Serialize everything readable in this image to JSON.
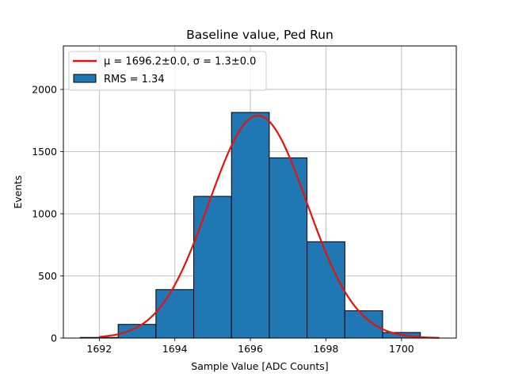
{
  "chart_data": {
    "type": "bar",
    "title": "Baseline value, Ped Run",
    "xlabel": "Sample Value [ADC Counts]",
    "ylabel": "Events",
    "xlim": [
      1691.05,
      1701.45
    ],
    "ylim": [
      0,
      2350
    ],
    "grid": true,
    "legend_placement": "top-left",
    "x_ticks": [
      1692,
      1694,
      1696,
      1698,
      1700
    ],
    "y_ticks": [
      0,
      500,
      1000,
      1500,
      2000
    ],
    "bin_edges": [
      1691.5,
      1692.5,
      1693.5,
      1694.5,
      1695.5,
      1696.5,
      1697.5,
      1698.5,
      1699.5,
      1700.5
    ],
    "values": [
      5,
      110,
      390,
      1140,
      1815,
      1450,
      775,
      220,
      45
    ],
    "bar_color": "#1f77b4",
    "fit_color": "#e8120c",
    "fit": {
      "mu": 1696.2,
      "sigma": 1.3,
      "amplitude": 1790,
      "x_range": [
        1692.0,
        1701.0
      ]
    },
    "series": [
      {
        "kind": "line",
        "name": "μ = 1696.2±0.0, σ = 1.3±0.0"
      },
      {
        "kind": "bar",
        "name": "RMS = 1.34"
      }
    ]
  }
}
